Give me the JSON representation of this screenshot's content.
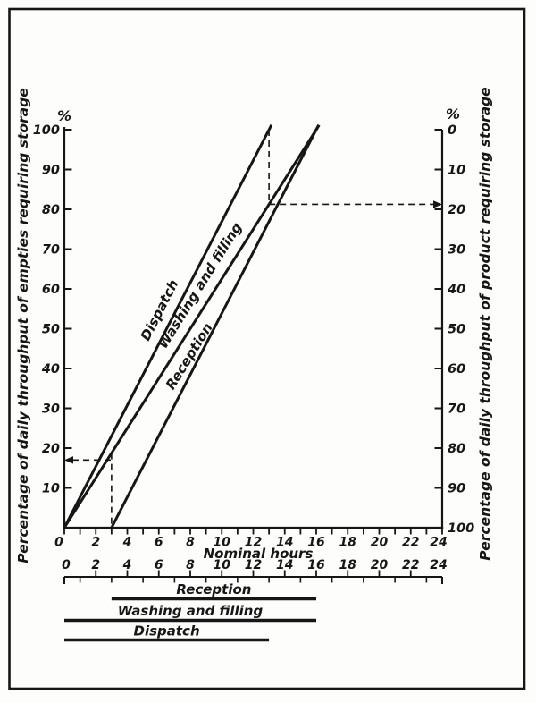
{
  "chart_data": {
    "type": "line",
    "title": "",
    "xlabel": "Nominal hours",
    "ylabel_left": "Percentage of daily throughput of empties requiring storage",
    "ylabel_right": "Percentage of daily throughput of product requiring storage",
    "percent_symbol_left": "%",
    "percent_symbol_right": "%",
    "xlim": [
      0,
      24
    ],
    "x_minor_tick_step": 1,
    "x_tick_labels": [
      "0",
      "2",
      "4",
      "6",
      "8",
      "10",
      "12",
      "14",
      "16",
      "18",
      "20",
      "22",
      "24"
    ],
    "ylim_left": [
      0,
      100
    ],
    "y_left_tick_labels": [
      "100",
      "90",
      "80",
      "70",
      "60",
      "50",
      "40",
      "30",
      "20",
      "10"
    ],
    "y_right_tick_labels": [
      "0",
      "10",
      "20",
      "30",
      "40",
      "50",
      "60",
      "70",
      "80",
      "90",
      "100"
    ],
    "y_right_axis_inverted": true,
    "grid": false,
    "legend_position": "labels-along-lines",
    "series": [
      {
        "name": "Dispatch",
        "points": [
          [
            0,
            0
          ],
          [
            13,
            100
          ]
        ]
      },
      {
        "name": "Washing and filling",
        "points": [
          [
            0,
            0
          ],
          [
            16,
            100
          ]
        ]
      },
      {
        "name": "Reception",
        "points": [
          [
            3,
            0
          ],
          [
            16,
            100
          ]
        ]
      }
    ],
    "annotations": [
      {
        "kind": "dashed-vertical",
        "x": 13,
        "y_from": 100,
        "y_to": 81.25
      },
      {
        "kind": "dashed-horizontal",
        "y": 81.25,
        "x_from": 13,
        "x_to": 24,
        "arrow": "right"
      },
      {
        "kind": "dashed-vertical",
        "x": 3,
        "y_from": 18.75,
        "y_to": 0
      },
      {
        "kind": "dashed-horizontal",
        "y": 17,
        "x_from": 0,
        "x_to": 3,
        "arrow": "left"
      }
    ],
    "timeline": {
      "xlim": [
        0,
        24
      ],
      "tick_labels": [
        "0",
        "2",
        "4",
        "6",
        "8",
        "10",
        "12",
        "14",
        "16",
        "18",
        "20",
        "22",
        "24"
      ],
      "bars": [
        {
          "label": "Reception",
          "start": 3,
          "end": 16
        },
        {
          "label": "Washing and filling",
          "start": 0,
          "end": 16
        },
        {
          "label": "Dispatch",
          "start": 0,
          "end": 13
        }
      ]
    },
    "ink_color": "#161616",
    "paper_color": "#fdfdfc"
  }
}
